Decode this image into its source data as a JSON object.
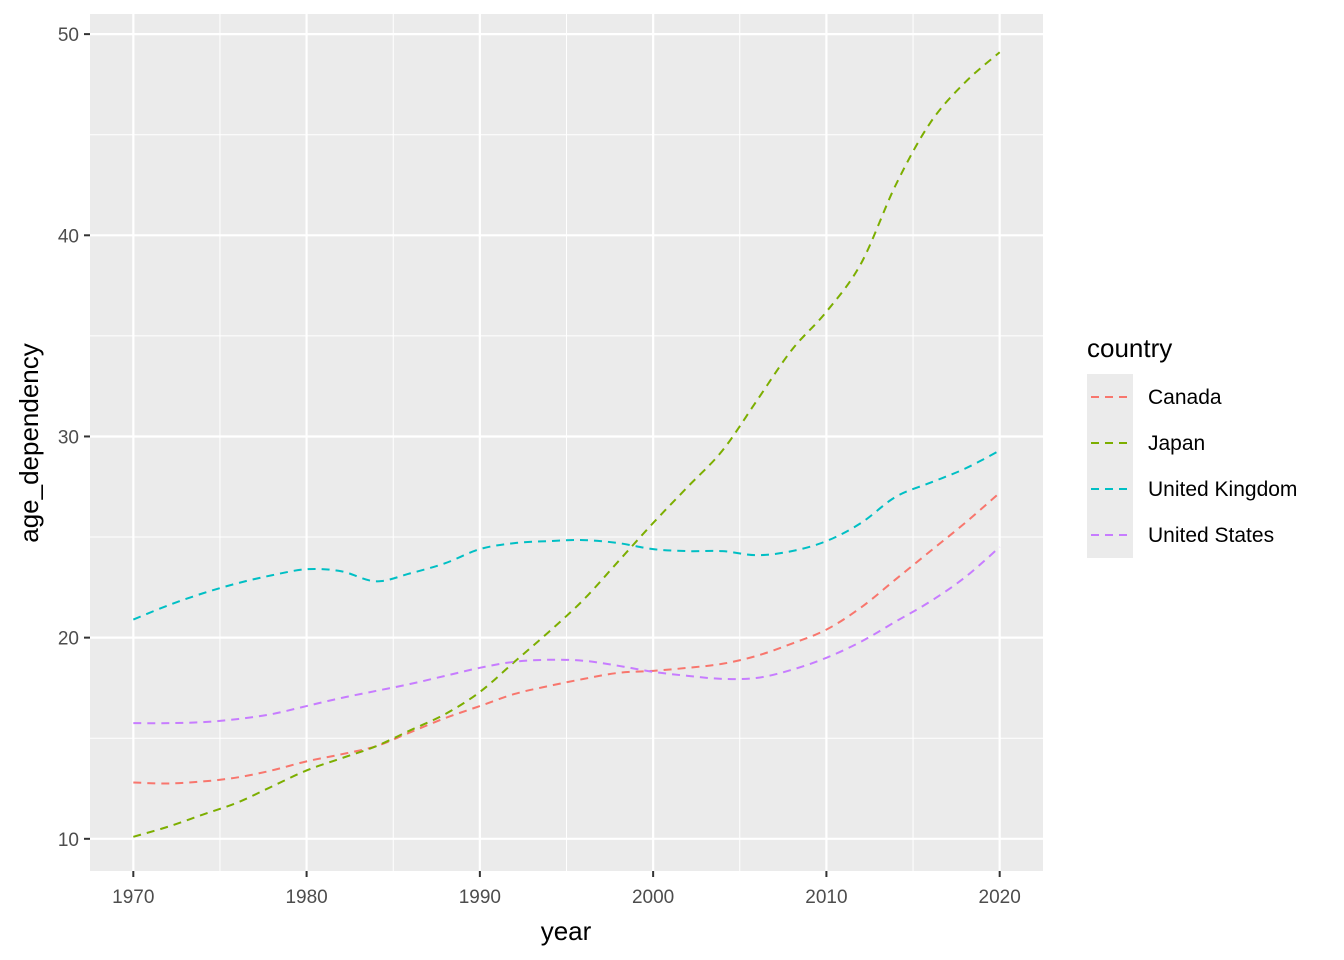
{
  "chart_data": {
    "type": "line",
    "xlabel": "year",
    "ylabel": "age_dependency",
    "xlim": [
      1967.5,
      2022.5
    ],
    "ylim": [
      8.4,
      51.0
    ],
    "x_ticks": [
      1970,
      1980,
      1990,
      2000,
      2010,
      2020
    ],
    "y_ticks": [
      10,
      20,
      30,
      40,
      50
    ],
    "x_tick_labels": [
      "1970",
      "1980",
      "1990",
      "2000",
      "2010",
      "2020"
    ],
    "y_tick_labels": [
      "10",
      "20",
      "30",
      "40",
      "50"
    ],
    "grid": true,
    "line_style": "dashed",
    "legend": {
      "title": "country",
      "placement": "right",
      "entries": [
        "Canada",
        "Japan",
        "United Kingdom",
        "United States"
      ]
    },
    "x": [
      1970,
      1972,
      1974,
      1976,
      1978,
      1980,
      1982,
      1984,
      1986,
      1988,
      1990,
      1992,
      1994,
      1996,
      1998,
      2000,
      2002,
      2004,
      2006,
      2008,
      2010,
      2012,
      2014,
      2016,
      2018,
      2020
    ],
    "series": [
      {
        "name": "Canada",
        "color": "#F8766D",
        "values": [
          12.8,
          12.75,
          12.85,
          13.05,
          13.4,
          13.85,
          14.2,
          14.6,
          15.3,
          16.0,
          16.6,
          17.2,
          17.6,
          17.95,
          18.25,
          18.35,
          18.5,
          18.7,
          19.1,
          19.7,
          20.4,
          21.5,
          22.9,
          24.3,
          25.7,
          27.2
        ]
      },
      {
        "name": "Japan",
        "color": "#7CAE00",
        "values": [
          10.1,
          10.6,
          11.2,
          11.8,
          12.6,
          13.4,
          14.0,
          14.6,
          15.4,
          16.2,
          17.3,
          18.8,
          20.3,
          21.9,
          23.8,
          25.7,
          27.5,
          29.3,
          31.8,
          34.3,
          36.2,
          38.6,
          42.5,
          45.6,
          47.6,
          49.1
        ]
      },
      {
        "name": "United Kingdom",
        "color": "#00BFC4",
        "values": [
          20.9,
          21.6,
          22.2,
          22.7,
          23.1,
          23.4,
          23.3,
          22.8,
          23.2,
          23.7,
          24.4,
          24.7,
          24.8,
          24.85,
          24.7,
          24.4,
          24.3,
          24.3,
          24.1,
          24.3,
          24.8,
          25.7,
          27.0,
          27.7,
          28.4,
          29.3
        ]
      },
      {
        "name": "United States",
        "color": "#C77CFF",
        "values": [
          15.75,
          15.75,
          15.8,
          15.95,
          16.2,
          16.6,
          17.0,
          17.35,
          17.7,
          18.1,
          18.5,
          18.8,
          18.9,
          18.85,
          18.6,
          18.3,
          18.1,
          17.95,
          18.0,
          18.4,
          19.0,
          19.8,
          20.8,
          21.8,
          23.0,
          24.5
        ]
      }
    ]
  }
}
